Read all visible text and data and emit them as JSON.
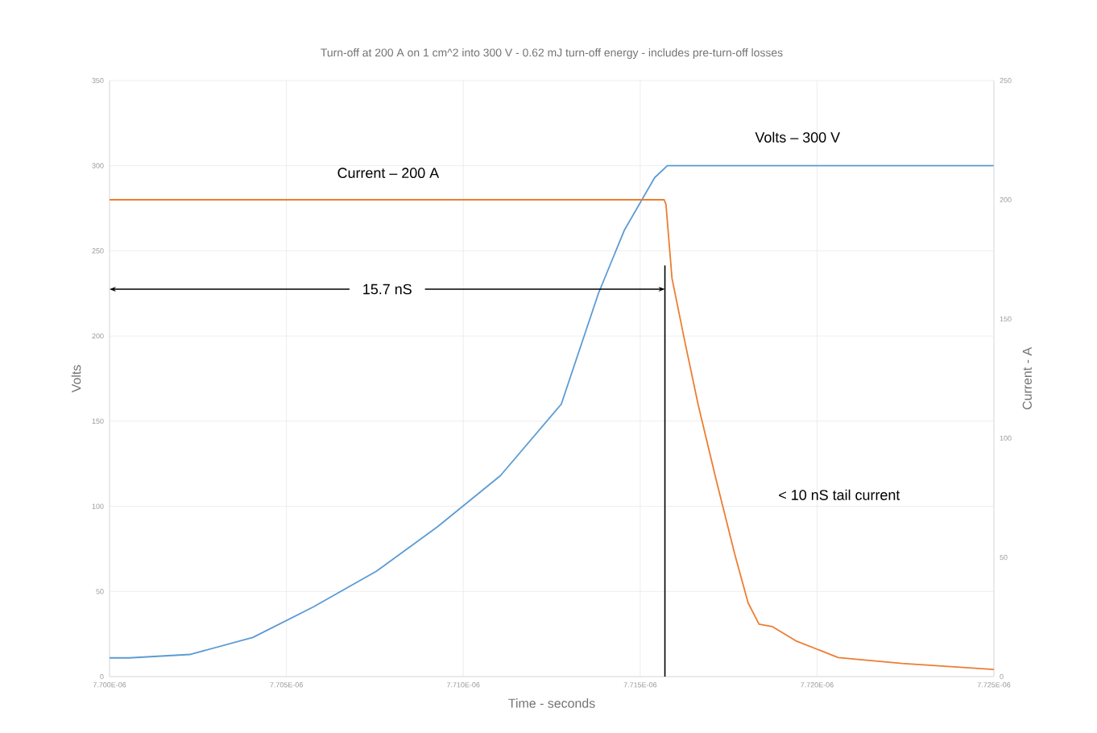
{
  "chart_data": {
    "type": "line",
    "title": "Turn-off at 200 A on 1 cm^2 into 300 V - 0.62 mJ turn-off energy - includes pre-turn-off losses",
    "xlabel": "Time - seconds",
    "ylabel": "Volts",
    "y2label": "Current - A",
    "series": [
      {
        "color": "#5b9bd5",
        "x": [
          7.7e-06,
          7.70055e-06,
          7.70227e-06,
          7.70405e-06,
          7.70577e-06,
          7.70755e-06,
          7.70927e-06,
          7.71105e-06,
          7.71277e-06,
          7.71382e-06,
          7.71455e-06,
          7.71541e-06,
          7.71577e-06,
          7.7163e-06,
          7.725e-06
        ],
        "values": [
          11,
          11,
          13,
          23,
          41,
          62,
          88,
          118,
          160,
          225,
          262,
          293,
          300,
          300,
          300
        ]
      },
      {
        "color": "#ed7d31",
        "axis": "y2",
        "x": [
          7.7e-06,
          7.71568e-06,
          7.71573e-06,
          7.7159e-06,
          7.71627e-06,
          7.71664e-06,
          7.71714e-06,
          7.71768e-06,
          7.71805e-06,
          7.71836e-06,
          7.71873e-06,
          7.7194e-06,
          7.7206e-06,
          7.7224e-06,
          7.725e-06
        ],
        "values": [
          200,
          200,
          198,
          167,
          140,
          114,
          83,
          51,
          31,
          22,
          21,
          15,
          8,
          5.5,
          3
        ]
      }
    ],
    "xlim": [
      7.7e-06,
      7.725e-06
    ],
    "xticks": [
      {
        "value": 7.7e-06,
        "label": "7.700E-06"
      },
      {
        "value": 7.705e-06,
        "label": "7.705E-06"
      },
      {
        "value": 7.71e-06,
        "label": "7.710E-06"
      },
      {
        "value": 7.715e-06,
        "label": "7.715E-06"
      },
      {
        "value": 7.72e-06,
        "label": "7.720E-06"
      },
      {
        "value": 7.725e-06,
        "label": "7.725E-06"
      }
    ],
    "ylim": [
      0,
      350
    ],
    "yticks": [
      0,
      50,
      100,
      150,
      200,
      250,
      300,
      350
    ],
    "y2lim": [
      0,
      250
    ],
    "y2ticks": [
      0,
      50,
      100,
      150,
      200,
      250
    ],
    "grid": true,
    "ref_lines": [
      {
        "axis": "x",
        "value": 7.7157e-06,
        "label": "15.7 nS",
        "color": "#000000"
      }
    ],
    "annotations": [
      "Current – 200 A",
      "Volts – 300 V",
      "< 10 nS tail current"
    ]
  }
}
